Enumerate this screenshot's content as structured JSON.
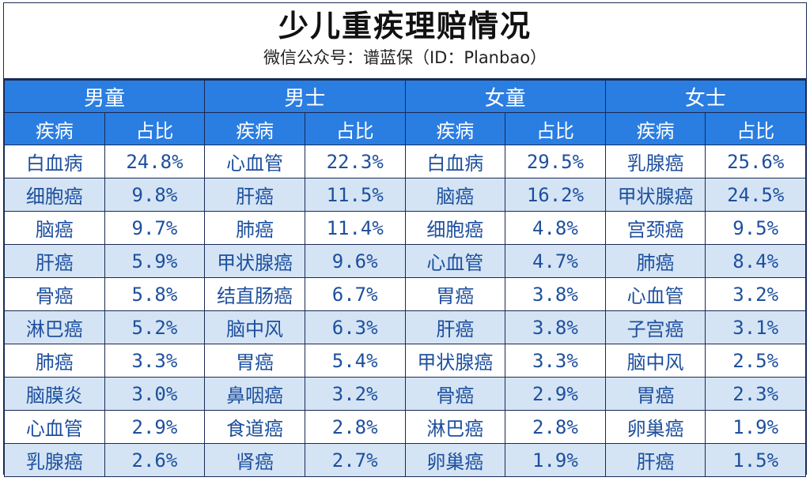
{
  "title": "少儿重疾理赔情况",
  "subtitle": "微信公众号：谱蓝保（ID：Planbao）",
  "colors": {
    "header_bg": "#2a7de1",
    "header_text": "#ffffff",
    "row_alt": "#d4e4f4",
    "cell_text": "#1d4f9e"
  },
  "groups": [
    "男童",
    "男士",
    "女童",
    "女士"
  ],
  "col_headers": {
    "disease": "疾病",
    "ratio": "占比"
  },
  "rows": [
    [
      [
        "白血病",
        "24.8%"
      ],
      [
        "心血管",
        "22.3%"
      ],
      [
        "白血病",
        "29.5%"
      ],
      [
        "乳腺癌",
        "25.6%"
      ]
    ],
    [
      [
        "细胞癌",
        "9.8%"
      ],
      [
        "肝癌",
        "11.5%"
      ],
      [
        "脑癌",
        "16.2%"
      ],
      [
        "甲状腺癌",
        "24.5%"
      ]
    ],
    [
      [
        "脑癌",
        "9.7%"
      ],
      [
        "肺癌",
        "11.4%"
      ],
      [
        "细胞癌",
        "4.8%"
      ],
      [
        "宫颈癌",
        "9.5%"
      ]
    ],
    [
      [
        "肝癌",
        "5.9%"
      ],
      [
        "甲状腺癌",
        "9.6%"
      ],
      [
        "心血管",
        "4.7%"
      ],
      [
        "肺癌",
        "8.4%"
      ]
    ],
    [
      [
        "骨癌",
        "5.8%"
      ],
      [
        "结直肠癌",
        "6.7%"
      ],
      [
        "胃癌",
        "3.8%"
      ],
      [
        "心血管",
        "3.2%"
      ]
    ],
    [
      [
        "淋巴癌",
        "5.2%"
      ],
      [
        "脑中风",
        "6.3%"
      ],
      [
        "肝癌",
        "3.8%"
      ],
      [
        "子宫癌",
        "3.1%"
      ]
    ],
    [
      [
        "肺癌",
        "3.3%"
      ],
      [
        "胃癌",
        "5.4%"
      ],
      [
        "甲状腺癌",
        "3.3%"
      ],
      [
        "脑中风",
        "2.5%"
      ]
    ],
    [
      [
        "脑膜炎",
        "3.0%"
      ],
      [
        "鼻咽癌",
        "3.2%"
      ],
      [
        "骨癌",
        "2.9%"
      ],
      [
        "胃癌",
        "2.3%"
      ]
    ],
    [
      [
        "心血管",
        "2.9%"
      ],
      [
        "食道癌",
        "2.8%"
      ],
      [
        "淋巴癌",
        "2.8%"
      ],
      [
        "卵巢癌",
        "1.9%"
      ]
    ],
    [
      [
        "乳腺癌",
        "2.6%"
      ],
      [
        "肾癌",
        "2.7%"
      ],
      [
        "卵巢癌",
        "1.9%"
      ],
      [
        "肝癌",
        "1.5%"
      ]
    ]
  ]
}
